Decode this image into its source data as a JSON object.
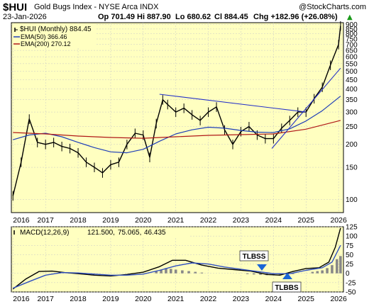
{
  "header": {
    "symbol": "$HUI",
    "name": "Gold Bugs Index - NYSE Arca  INDX",
    "date": "23-Jan-2026",
    "open": "Op 701.49",
    "high": "Hi 887.90",
    "low": "Lo 680.62",
    "close": "Cl 884.45",
    "change": "Chg +182.96 (+26.08%)",
    "change_arrow": "▲",
    "watermark": "@StockCharts.com"
  },
  "legend": {
    "price": "$HUI (Monthly) 884.45",
    "ema50": "EMA(50) 366.46",
    "ema200": "EMA(200) 270.12"
  },
  "macd_legend": {
    "label": "MACD(12,26,9)",
    "v1": "121.500,",
    "v2": "75.065,",
    "v3": "46.435"
  },
  "annotations": {
    "tlbss": "TLBSS",
    "tlbbs": "TLBBS"
  },
  "colors": {
    "background": "#ffffc0",
    "grid": "#c8c8c8",
    "price": "#000000",
    "ema50": "#1f3fb8",
    "ema200": "#b01818",
    "trendline": "#2430c8",
    "macd": "#000000",
    "signal": "#3050c0",
    "histogram": "#888888",
    "annotation_arrow": "#1a66d6"
  },
  "chart_data": [
    {
      "type": "line",
      "title": "Gold Bugs Index - NYSE Arca INDX",
      "scale": "log",
      "ylim": [
        85,
        920
      ],
      "ticks_y": [
        100,
        150,
        200,
        250,
        300,
        350,
        400,
        450,
        500,
        550,
        600,
        650,
        700,
        750,
        800,
        850,
        900
      ],
      "x_tick_labels": [
        "2016",
        "2017",
        "2018",
        "2019",
        "2020",
        "2021",
        "2022",
        "2023",
        "2024",
        "2025",
        "2026"
      ],
      "series": [
        {
          "name": "$HUI (Monthly)",
          "x": [
            2016.0,
            2016.25,
            2016.5,
            2016.75,
            2017.0,
            2017.25,
            2017.5,
            2017.75,
            2018.0,
            2018.25,
            2018.5,
            2018.75,
            2019.0,
            2019.25,
            2019.5,
            2019.75,
            2020.0,
            2020.2,
            2020.4,
            2020.6,
            2020.75,
            2021.0,
            2021.25,
            2021.5,
            2021.75,
            2022.0,
            2022.25,
            2022.5,
            2022.75,
            2023.0,
            2023.25,
            2023.5,
            2023.75,
            2024.0,
            2024.25,
            2024.5,
            2024.75,
            2025.0,
            2025.25,
            2025.5,
            2025.75,
            2026.0,
            2026.06
          ],
          "values": [
            105,
            160,
            275,
            205,
            200,
            205,
            195,
            190,
            180,
            160,
            150,
            140,
            155,
            160,
            200,
            230,
            225,
            170,
            260,
            350,
            330,
            300,
            315,
            290,
            270,
            300,
            320,
            240,
            200,
            235,
            250,
            225,
            215,
            215,
            245,
            270,
            300,
            300,
            355,
            410,
            540,
            700,
            884
          ]
        },
        {
          "name": "EMA(50)",
          "x": [
            2016.0,
            2016.5,
            2017.0,
            2017.5,
            2018.0,
            2018.5,
            2019.0,
            2019.5,
            2020.0,
            2020.5,
            2021.0,
            2021.5,
            2022.0,
            2022.5,
            2023.0,
            2023.5,
            2024.0,
            2024.5,
            2025.0,
            2025.5,
            2026.06
          ],
          "values": [
            212,
            225,
            230,
            220,
            205,
            192,
            182,
            180,
            188,
            208,
            228,
            240,
            248,
            245,
            238,
            233,
            232,
            243,
            268,
            305,
            366
          ]
        },
        {
          "name": "EMA(200)",
          "x": [
            2016.0,
            2017.0,
            2018.0,
            2019.0,
            2020.0,
            2021.0,
            2022.0,
            2023.0,
            2024.0,
            2025.0,
            2026.06
          ],
          "values": [
            232,
            228,
            222,
            218,
            216,
            220,
            224,
            226,
            228,
            242,
            270
          ]
        },
        {
          "name": "Trendline 1",
          "x": [
            2020.5,
            2025.0
          ],
          "values": [
            375,
            300
          ]
        },
        {
          "name": "Trendline 2",
          "x": [
            2023.95,
            2026.06
          ],
          "values": [
            190,
            520
          ]
        }
      ]
    },
    {
      "type": "line",
      "title": "MACD(12,26,9)",
      "ylim": [
        -50,
        125
      ],
      "ticks_y": [
        -50,
        -25,
        0,
        25,
        50,
        75,
        100,
        125
      ],
      "x_tick_labels": [
        "2016",
        "2017",
        "2018",
        "2019",
        "2020",
        "2021",
        "2022",
        "2023",
        "2024",
        "2025",
        "2026"
      ],
      "series": [
        {
          "name": "MACD",
          "x": [
            2016.0,
            2016.4,
            2016.8,
            2017.2,
            2017.6,
            2018.0,
            2018.5,
            2019.0,
            2019.5,
            2020.0,
            2020.5,
            2020.9,
            2021.3,
            2021.8,
            2022.3,
            2022.8,
            2023.3,
            2023.8,
            2024.2,
            2024.6,
            2025.0,
            2025.4,
            2025.7,
            2025.9,
            2026.06
          ],
          "values": [
            -42,
            -15,
            5,
            6,
            2,
            -1,
            -5,
            -7,
            -3,
            3,
            18,
            35,
            35,
            22,
            14,
            10,
            6,
            -3,
            -5,
            5,
            13,
            15,
            30,
            70,
            121.5
          ]
        },
        {
          "name": "Signal",
          "x": [
            2016.0,
            2016.5,
            2017.0,
            2017.5,
            2018.0,
            2018.5,
            2019.0,
            2019.5,
            2020.0,
            2020.5,
            2021.0,
            2021.5,
            2022.0,
            2022.5,
            2023.0,
            2023.5,
            2024.0,
            2024.5,
            2025.0,
            2025.5,
            2025.8,
            2026.06
          ],
          "values": [
            -40,
            -22,
            -5,
            2,
            1,
            -2,
            -5,
            -5,
            -2,
            8,
            20,
            28,
            25,
            17,
            11,
            5,
            -1,
            -1,
            8,
            15,
            30,
            75.1
          ]
        },
        {
          "name": "Histogram",
          "x": [
            2020.4,
            2020.55,
            2020.7,
            2020.85,
            2021.0,
            2021.2,
            2021.4,
            2021.6,
            2021.8,
            2023.2,
            2023.4,
            2023.6,
            2023.8,
            2024.0,
            2024.2,
            2024.4,
            2024.6,
            2025.2,
            2025.35,
            2025.5,
            2025.65,
            2025.8,
            2025.95,
            2026.06
          ],
          "values": [
            6,
            10,
            14,
            12,
            10,
            8,
            6,
            4,
            2,
            -2,
            -3,
            -4,
            -5,
            -5,
            -4,
            -3,
            -2,
            4,
            6,
            8,
            14,
            22,
            38,
            46.4
          ]
        }
      ]
    }
  ]
}
